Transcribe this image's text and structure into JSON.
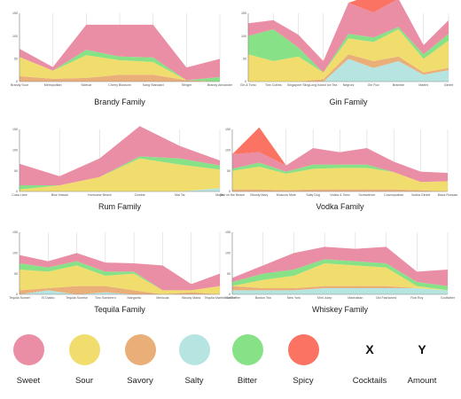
{
  "chart_data": [
    {
      "type": "area",
      "title": "Brandy Family",
      "ylim": [
        0,
        150
      ],
      "yticks": [
        "0",
        "50",
        "100",
        "150"
      ],
      "categories": [
        "Brandy Sour",
        "Metropolitan",
        "Sidecar",
        "Cherry Blossom",
        "Sang Standard",
        "Stinger",
        "Brandy Alexander"
      ],
      "series": [
        {
          "name": "Salty",
          "values": [
            0,
            0,
            0,
            0,
            0,
            0,
            0
          ]
        },
        {
          "name": "Savory",
          "values": [
            12,
            6,
            8,
            15,
            15,
            3,
            0
          ]
        },
        {
          "name": "Sour",
          "values": [
            42,
            18,
            50,
            32,
            28,
            0,
            0
          ]
        },
        {
          "name": "Bitter",
          "values": [
            0,
            0,
            12,
            8,
            10,
            0,
            10
          ]
        },
        {
          "name": "Sweet",
          "values": [
            18,
            8,
            55,
            70,
            72,
            28,
            40
          ]
        }
      ]
    },
    {
      "type": "area",
      "title": "Gin Family",
      "ylim": [
        0,
        150
      ],
      "yticks": [
        "0",
        "50",
        "100",
        "150"
      ],
      "categories": [
        "Gin & Tonic",
        "Tom Collins",
        "Singapore Sling",
        "Long Island Ice Tea",
        "Negroni",
        "Gin Fizz",
        "Bramble",
        "Martini",
        "Gimlet"
      ],
      "series": [
        {
          "name": "Salty",
          "values": [
            0,
            0,
            0,
            0,
            50,
            30,
            45,
            15,
            25
          ]
        },
        {
          "name": "Savory",
          "values": [
            0,
            0,
            0,
            5,
            10,
            15,
            10,
            5,
            5
          ]
        },
        {
          "name": "Sour",
          "values": [
            60,
            45,
            55,
            15,
            35,
            42,
            60,
            30,
            60
          ]
        },
        {
          "name": "Bitter",
          "values": [
            40,
            70,
            20,
            0,
            10,
            10,
            5,
            10,
            15
          ]
        },
        {
          "name": "Sweet",
          "values": [
            28,
            20,
            28,
            25,
            68,
            55,
            62,
            20,
            30
          ]
        },
        {
          "name": "Spicy",
          "values": [
            0,
            0,
            0,
            0,
            0,
            40,
            0,
            0,
            0
          ]
        }
      ]
    },
    {
      "type": "area",
      "title": "Rum Family",
      "ylim": [
        0,
        150
      ],
      "yticks": [
        "0",
        "50",
        "100",
        "150"
      ],
      "categories": [
        "Cuba Libre",
        "Blue Hawaii",
        "Hurricane Beach",
        "Zombie",
        "Mai Tai",
        "Mojito"
      ],
      "series": [
        {
          "name": "Salty",
          "values": [
            0,
            0,
            0,
            0,
            0,
            8
          ]
        },
        {
          "name": "Sour",
          "values": [
            5,
            15,
            35,
            80,
            65,
            45
          ]
        },
        {
          "name": "Bitter",
          "values": [
            10,
            0,
            0,
            5,
            15,
            10
          ]
        },
        {
          "name": "Sweet",
          "values": [
            52,
            22,
            45,
            73,
            30,
            12
          ]
        }
      ]
    },
    {
      "type": "area",
      "title": "Vodka Family",
      "ylim": [
        0,
        150
      ],
      "yticks": [
        "0",
        "50",
        "100",
        "150"
      ],
      "categories": [
        "Sex on the Beach",
        "Bloody Mary",
        "Moscow Mule",
        "Salty Dog",
        "Vodka & Tonic",
        "Screwdriver",
        "Cosmopolitan",
        "Vodka Gimlet",
        "Black Russian"
      ],
      "series": [
        {
          "name": "Salty",
          "values": [
            0,
            0,
            0,
            0,
            0,
            0,
            0,
            0,
            0
          ]
        },
        {
          "name": "Savory",
          "values": [
            5,
            5,
            3,
            5,
            5,
            5,
            5,
            3,
            0
          ]
        },
        {
          "name": "Sour",
          "values": [
            45,
            55,
            40,
            50,
            52,
            52,
            42,
            20,
            25
          ]
        },
        {
          "name": "Bitter",
          "values": [
            5,
            10,
            5,
            10,
            8,
            8,
            0,
            0,
            0
          ]
        },
        {
          "name": "Sweet",
          "values": [
            35,
            25,
            15,
            40,
            30,
            40,
            25,
            25,
            20
          ]
        },
        {
          "name": "Spicy",
          "values": [
            0,
            60,
            0,
            0,
            0,
            0,
            0,
            0,
            0
          ]
        }
      ]
    },
    {
      "type": "area",
      "title": "Tequila Family",
      "ylim": [
        0,
        150
      ],
      "yticks": [
        "0",
        "50",
        "100",
        "150"
      ],
      "categories": [
        "Tequila Sunset",
        "El Diablo",
        "Tequila Sunrise",
        "Toro Sombrero",
        "Margarita",
        "Mexicola",
        "Bloody Maria",
        "Tequila Martini Coffee"
      ],
      "series": [
        {
          "name": "Salty",
          "values": [
            0,
            10,
            0,
            5,
            0,
            0,
            0,
            0
          ]
        },
        {
          "name": "Savory",
          "values": [
            10,
            5,
            20,
            15,
            10,
            0,
            5,
            0
          ]
        },
        {
          "name": "Sour",
          "values": [
            50,
            40,
            50,
            25,
            40,
            10,
            5,
            20
          ]
        },
        {
          "name": "Bitter",
          "values": [
            15,
            10,
            10,
            10,
            5,
            0,
            0,
            0
          ]
        },
        {
          "name": "Sweet",
          "values": [
            20,
            15,
            20,
            22,
            20,
            60,
            15,
            30
          ]
        }
      ]
    },
    {
      "type": "area",
      "title": "Whiskey Family",
      "ylim": [
        0,
        150
      ],
      "yticks": [
        "0",
        "50",
        "100",
        "150"
      ],
      "categories": [
        "Irish Coffee",
        "Boston Tea",
        "New York",
        "Mint Julep",
        "Manhattan",
        "Old Fashioned",
        "Rob Roy",
        "Godfather"
      ],
      "series": [
        {
          "name": "Salty",
          "values": [
            10,
            10,
            10,
            15,
            15,
            15,
            15,
            10
          ]
        },
        {
          "name": "Savory",
          "values": [
            10,
            5,
            5,
            5,
            5,
            5,
            0,
            0
          ]
        },
        {
          "name": "Sour",
          "values": [
            0,
            20,
            30,
            55,
            50,
            45,
            5,
            0
          ]
        },
        {
          "name": "Bitter",
          "values": [
            10,
            15,
            15,
            10,
            10,
            10,
            10,
            10
          ]
        },
        {
          "name": "Sweet",
          "values": [
            10,
            20,
            40,
            30,
            30,
            40,
            25,
            40
          ]
        }
      ]
    }
  ],
  "legend": {
    "items": [
      {
        "label": "Sweet",
        "color": "#ea8ea5"
      },
      {
        "label": "Sour",
        "color": "#f1dd6e"
      },
      {
        "label": "Savory",
        "color": "#eaae78"
      },
      {
        "label": "Salty",
        "color": "#b5e4e1"
      },
      {
        "label": "Bitter",
        "color": "#87e186"
      },
      {
        "label": "Spicy",
        "color": "#fb7362"
      }
    ],
    "axis_keys": [
      {
        "symbol": "X",
        "label": "Cocktails"
      },
      {
        "symbol": "Y",
        "label": "Amount"
      }
    ]
  }
}
